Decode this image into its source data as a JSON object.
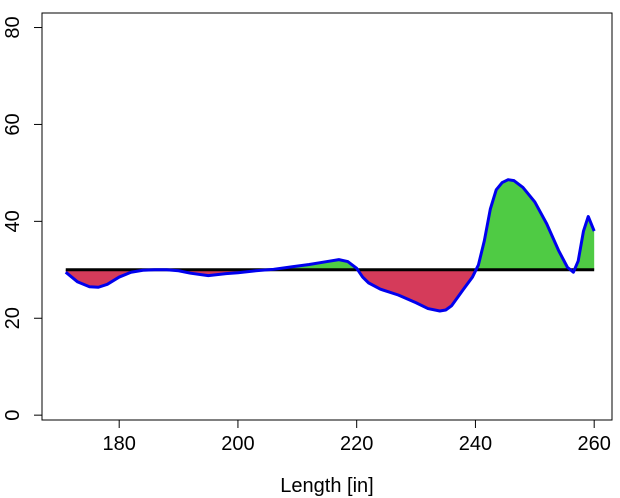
{
  "chart_data": {
    "type": "area",
    "title": "",
    "xlabel": "Length [in]",
    "ylabel": "",
    "xlim": [
      167,
      263
    ],
    "ylim": [
      -1,
      83
    ],
    "xticks": [
      180,
      200,
      220,
      240,
      260
    ],
    "yticks": [
      0,
      20,
      40,
      60,
      80
    ],
    "baseline": 30,
    "grid": false,
    "colors": {
      "curve": "#0000ee",
      "baseline": "#000000",
      "above": "#4fcb44",
      "below": "#d53b5a"
    },
    "x": [
      171,
      173,
      175,
      176.5,
      178,
      180,
      182,
      184,
      186,
      188,
      190,
      192,
      195,
      198,
      200,
      203,
      206,
      209,
      212,
      215,
      217,
      218.5,
      220,
      221,
      222,
      224,
      227,
      230,
      232,
      234,
      235,
      236,
      238,
      239.5,
      240.5,
      241.5,
      242.5,
      243.5,
      244.5,
      245.5,
      246.5,
      248,
      250,
      252,
      254,
      255.5,
      256.5,
      257.3,
      258.2,
      259,
      260
    ],
    "y": [
      29.5,
      27.5,
      26.5,
      26.4,
      27,
      28.5,
      29.5,
      29.9,
      30,
      30,
      29.8,
      29.3,
      28.8,
      29.2,
      29.4,
      29.8,
      30.1,
      30.6,
      31.1,
      31.7,
      32.1,
      31.7,
      30.3,
      28.5,
      27.3,
      26,
      24.8,
      23.2,
      22,
      21.5,
      21.7,
      22.6,
      26,
      28.5,
      31,
      36,
      42.5,
      46.5,
      48,
      48.6,
      48.4,
      47,
      44,
      39.5,
      34,
      30.5,
      29.5,
      31.8,
      38,
      41,
      38
    ]
  }
}
